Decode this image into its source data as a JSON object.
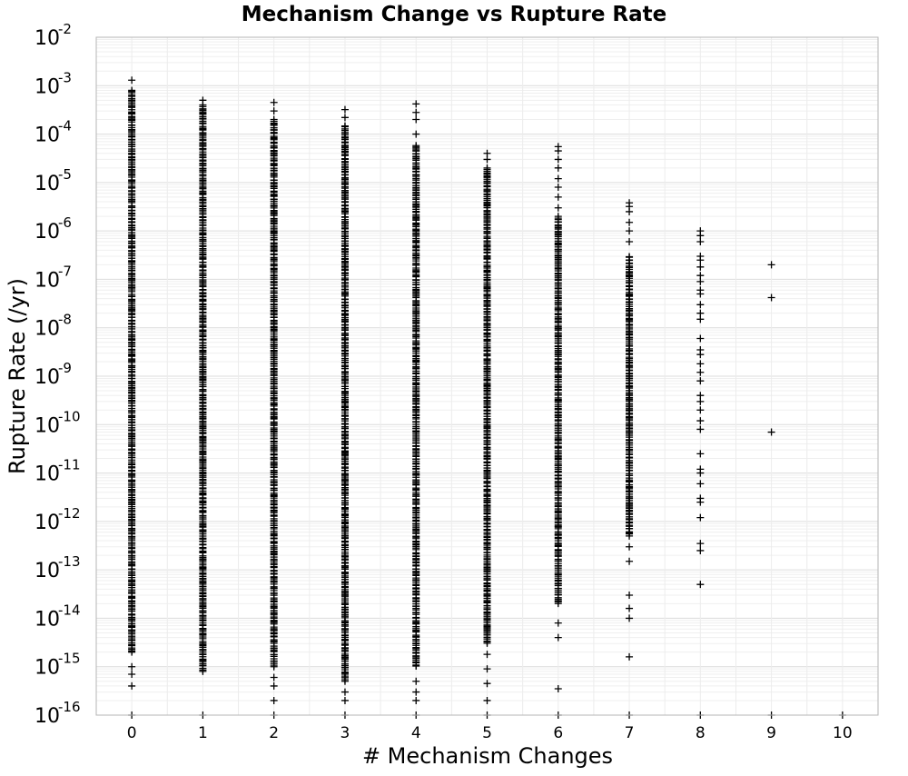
{
  "chart_data": {
    "type": "scatter",
    "title": "Mechanism Change vs Rupture Rate",
    "xlabel": "# Mechanism Changes",
    "ylabel": "Rupture Rate (/yr)",
    "x_ticks": [
      0,
      1,
      2,
      3,
      4,
      5,
      6,
      7,
      8,
      9,
      10
    ],
    "xlim": [
      -0.5,
      10.5
    ],
    "y_scale": "log",
    "ylim": [
      1e-16,
      0.01
    ],
    "y_ticks": [
      {
        "base": "10",
        "exp": "-2",
        "value": -2
      },
      {
        "base": "10",
        "exp": "-3",
        "value": -3
      },
      {
        "base": "10",
        "exp": "-4",
        "value": -4
      },
      {
        "base": "10",
        "exp": "-5",
        "value": -5
      },
      {
        "base": "10",
        "exp": "-6",
        "value": -6
      },
      {
        "base": "10",
        "exp": "-7",
        "value": -7
      },
      {
        "base": "10",
        "exp": "-8",
        "value": -8
      },
      {
        "base": "10",
        "exp": "-9",
        "value": -9
      },
      {
        "base": "10",
        "exp": "-10",
        "value": -10
      },
      {
        "base": "10",
        "exp": "-11",
        "value": -11
      },
      {
        "base": "10",
        "exp": "-12",
        "value": -12
      },
      {
        "base": "10",
        "exp": "-13",
        "value": -13
      },
      {
        "base": "10",
        "exp": "-14",
        "value": -14
      },
      {
        "base": "10",
        "exp": "-15",
        "value": -15
      },
      {
        "base": "10",
        "exp": "-16",
        "value": -16
      }
    ],
    "grid": true,
    "marker": "+",
    "series": [
      {
        "dense_ranges": [
          {
            "x": 0,
            "min": 2e-15,
            "max": 0.0008
          },
          {
            "x": 1,
            "min": 8e-16,
            "max": 0.0004
          },
          {
            "x": 2,
            "min": 1e-15,
            "max": 0.0002
          },
          {
            "x": 3,
            "min": 5e-16,
            "max": 0.00015
          },
          {
            "x": 4,
            "min": 1e-15,
            "max": 6e-05
          },
          {
            "x": 5,
            "min": 3e-15,
            "max": 2e-05
          },
          {
            "x": 6,
            "min": 2e-14,
            "max": 2e-06
          },
          {
            "x": 7,
            "min": 5e-13,
            "max": 3e-07
          }
        ],
        "points": [
          {
            "x": 0,
            "y": 0.0013
          },
          {
            "x": 0,
            "y": 1e-15
          },
          {
            "x": 0,
            "y": 7e-16
          },
          {
            "x": 0,
            "y": 4e-16
          },
          {
            "x": 0,
            "y": 1e-16
          },
          {
            "x": 1,
            "y": 0.0005
          },
          {
            "x": 1,
            "y": 1e-16
          },
          {
            "x": 2,
            "y": 0.00045
          },
          {
            "x": 2,
            "y": 0.0003
          },
          {
            "x": 2,
            "y": 6e-16
          },
          {
            "x": 2,
            "y": 4e-16
          },
          {
            "x": 2,
            "y": 2e-16
          },
          {
            "x": 2,
            "y": 1e-16
          },
          {
            "x": 3,
            "y": 0.00032
          },
          {
            "x": 3,
            "y": 0.00022
          },
          {
            "x": 3,
            "y": 3e-16
          },
          {
            "x": 3,
            "y": 2e-16
          },
          {
            "x": 3,
            "y": 1e-16
          },
          {
            "x": 4,
            "y": 0.00042
          },
          {
            "x": 4,
            "y": 0.00028
          },
          {
            "x": 4,
            "y": 0.0002
          },
          {
            "x": 4,
            "y": 0.0001
          },
          {
            "x": 4,
            "y": 5e-16
          },
          {
            "x": 4,
            "y": 3e-16
          },
          {
            "x": 4,
            "y": 2e-16
          },
          {
            "x": 4,
            "y": 1e-16
          },
          {
            "x": 5,
            "y": 4e-05
          },
          {
            "x": 5,
            "y": 3e-05
          },
          {
            "x": 5,
            "y": 1.8e-15
          },
          {
            "x": 5,
            "y": 9e-16
          },
          {
            "x": 5,
            "y": 4.5e-16
          },
          {
            "x": 5,
            "y": 2e-16
          },
          {
            "x": 5,
            "y": 1e-16
          },
          {
            "x": 6,
            "y": 5.5e-05
          },
          {
            "x": 6,
            "y": 4.5e-05
          },
          {
            "x": 6,
            "y": 3e-05
          },
          {
            "x": 6,
            "y": 2e-05
          },
          {
            "x": 6,
            "y": 1.2e-05
          },
          {
            "x": 6,
            "y": 8e-06
          },
          {
            "x": 6,
            "y": 5e-06
          },
          {
            "x": 6,
            "y": 3e-06
          },
          {
            "x": 6,
            "y": 8e-15
          },
          {
            "x": 6,
            "y": 4e-15
          },
          {
            "x": 6,
            "y": 3.5e-16
          },
          {
            "x": 6,
            "y": 1e-16
          },
          {
            "x": 7,
            "y": 3.8e-06
          },
          {
            "x": 7,
            "y": 3.2e-06
          },
          {
            "x": 7,
            "y": 2.5e-06
          },
          {
            "x": 7,
            "y": 1.5e-06
          },
          {
            "x": 7,
            "y": 1e-06
          },
          {
            "x": 7,
            "y": 6e-07
          },
          {
            "x": 7,
            "y": 3e-13
          },
          {
            "x": 7,
            "y": 1.5e-13
          },
          {
            "x": 7,
            "y": 3e-14
          },
          {
            "x": 7,
            "y": 1.6e-14
          },
          {
            "x": 7,
            "y": 1e-14
          },
          {
            "x": 7,
            "y": 1.6e-15
          },
          {
            "x": 7,
            "y": 1e-16
          },
          {
            "x": 8,
            "y": 1e-06
          },
          {
            "x": 8,
            "y": 8e-07
          },
          {
            "x": 8,
            "y": 6e-07
          },
          {
            "x": 8,
            "y": 3e-07
          },
          {
            "x": 8,
            "y": 2.5e-07
          },
          {
            "x": 8,
            "y": 1.8e-07
          },
          {
            "x": 8,
            "y": 1.2e-07
          },
          {
            "x": 8,
            "y": 9e-08
          },
          {
            "x": 8,
            "y": 6e-08
          },
          {
            "x": 8,
            "y": 5e-08
          },
          {
            "x": 8,
            "y": 3e-08
          },
          {
            "x": 8,
            "y": 2e-08
          },
          {
            "x": 8,
            "y": 1.5e-08
          },
          {
            "x": 8,
            "y": 6e-09
          },
          {
            "x": 8,
            "y": 3.5e-09
          },
          {
            "x": 8,
            "y": 2.8e-09
          },
          {
            "x": 8,
            "y": 1.8e-09
          },
          {
            "x": 8,
            "y": 1.2e-09
          },
          {
            "x": 8,
            "y": 8e-10
          },
          {
            "x": 8,
            "y": 4e-10
          },
          {
            "x": 8,
            "y": 3e-10
          },
          {
            "x": 8,
            "y": 2e-10
          },
          {
            "x": 8,
            "y": 1.2e-10
          },
          {
            "x": 8,
            "y": 8e-11
          },
          {
            "x": 8,
            "y": 2.5e-11
          },
          {
            "x": 8,
            "y": 1.2e-11
          },
          {
            "x": 8,
            "y": 1e-11
          },
          {
            "x": 8,
            "y": 6e-12
          },
          {
            "x": 8,
            "y": 3e-12
          },
          {
            "x": 8,
            "y": 2.5e-12
          },
          {
            "x": 8,
            "y": 1.2e-12
          },
          {
            "x": 8,
            "y": 3.5e-13
          },
          {
            "x": 8,
            "y": 2.5e-13
          },
          {
            "x": 8,
            "y": 5e-14
          },
          {
            "x": 8,
            "y": 1e-16
          },
          {
            "x": 9,
            "y": 2e-07
          },
          {
            "x": 9,
            "y": 4.2e-08
          },
          {
            "x": 9,
            "y": 7e-11
          },
          {
            "x": 9,
            "y": 1e-16
          },
          {
            "x": 10,
            "y": 1e-16
          }
        ]
      }
    ]
  }
}
